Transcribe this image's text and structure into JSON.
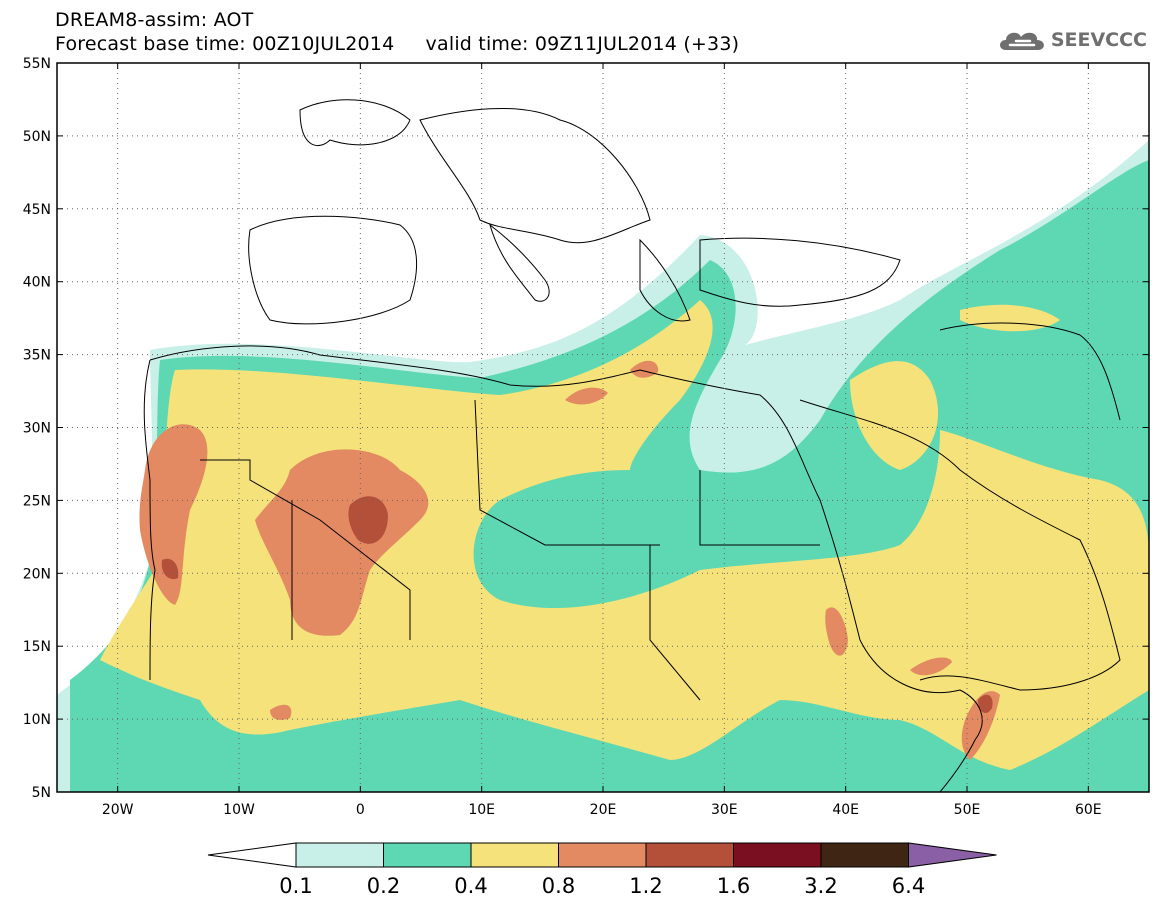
{
  "header": {
    "line1": "DREAM8-assim: AOT",
    "line2": "Forecast base time: 00Z10JUL2014     valid time: 09Z11JUL2014 (+33)"
  },
  "logo": {
    "text": "SEEVCCC",
    "icon": "cloud-icon"
  },
  "map": {
    "lat_labels": [
      "55N",
      "50N",
      "45N",
      "40N",
      "35N",
      "30N",
      "25N",
      "20N",
      "15N",
      "10N",
      "5N"
    ],
    "lat_values": [
      55,
      50,
      45,
      40,
      35,
      30,
      25,
      20,
      15,
      10,
      5
    ],
    "lon_labels": [
      "20W",
      "10W",
      "0",
      "10E",
      "20E",
      "30E",
      "40E",
      "50E",
      "60E"
    ],
    "lon_values": [
      -20,
      -10,
      0,
      10,
      20,
      30,
      40,
      50,
      60
    ],
    "lon_range": [
      -25,
      65
    ],
    "lat_range": [
      5,
      55
    ],
    "grid": "dotted"
  },
  "colorbar": {
    "labels": [
      "0.1",
      "0.2",
      "0.4",
      "0.8",
      "1.2",
      "1.6",
      "3.2",
      "6.4"
    ],
    "colors": [
      "#c9f0e8",
      "#5ed8b2",
      "#f5e27a",
      "#e38a63",
      "#b4503a",
      "#7a0f22",
      "#3e2514",
      "#8a5fa6"
    ],
    "under_color": "#ffffff"
  }
}
